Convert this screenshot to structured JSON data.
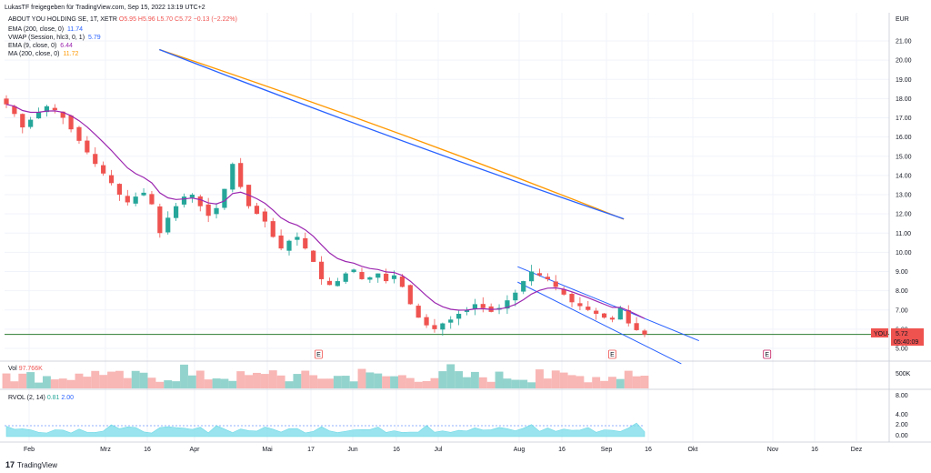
{
  "header": {
    "publisher": "LukasTF freigegeben für TradingView.com, Sep 15, 2022 13:19 UTC+2"
  },
  "symbol": {
    "name": "ABOUT YOU HOLDING SE, 1T, XETR",
    "open": "O5.95",
    "high": "H5.96",
    "low": "L5.70",
    "close": "C5.72",
    "change": "−0.13 (−2.22%)"
  },
  "indicators": [
    {
      "label": "EMA (200, close, 0)",
      "value": "11.74",
      "color": "#2962ff"
    },
    {
      "label": "VWAP (Session, hlc3, 0, 1)",
      "value": "5.79",
      "color": "#2962ff"
    },
    {
      "label": "EMA (9, close, 0)",
      "value": "6.44",
      "color": "#9c27b0"
    },
    {
      "label": "MA (200, close, 0)",
      "value": "11.72",
      "color": "#ff9800"
    }
  ],
  "currency": "EUR",
  "price_axis": [
    "21.00",
    "20.00",
    "19.00",
    "18.00",
    "17.00",
    "16.00",
    "15.00",
    "14.00",
    "13.00",
    "12.00",
    "11.00",
    "10.00",
    "9.00",
    "8.00",
    "7.00",
    "6.00",
    "5.00"
  ],
  "price_tags": {
    "level": "5.73",
    "last_symbol": "YOU",
    "last_price": "5.72",
    "countdown": "05:40:09"
  },
  "volume_pane": {
    "label": "Vol",
    "value": "97.766K",
    "axis": [
      "500K"
    ]
  },
  "rvol_pane": {
    "label": "RVOL (2, 14)",
    "v1": "0.81",
    "v2": "2.00",
    "axis": [
      "8.00",
      "4.00",
      "2.00",
      "0.00"
    ]
  },
  "time_axis": [
    "Feb",
    "Mrz",
    "16",
    "Apr",
    "Mai",
    "17",
    "Jun",
    "16",
    "Jul",
    "Aug",
    "16",
    "Sep",
    "16",
    "Okt",
    "Nov",
    "16",
    "Dez"
  ],
  "earnings_marker": "E",
  "footer": {
    "logo": "17",
    "brand": "TradingView"
  },
  "chart_data": {
    "type": "candlestick",
    "series": [
      {
        "name": "ABOUT YOU HOLDING SE",
        "close": [
          17.7,
          17.2,
          16.5,
          16.9,
          17.3,
          17.6,
          17.4,
          17.0,
          16.4,
          15.8,
          15.2,
          14.6,
          14.1,
          13.6,
          13.0,
          12.6,
          12.9,
          13.1,
          12.5,
          11.0,
          11.8,
          12.4,
          12.9,
          13.0,
          12.4,
          11.9,
          12.3,
          13.3,
          14.6,
          13.4,
          12.4,
          12.0,
          11.6,
          10.8,
          10.2,
          10.6,
          10.8,
          10.2,
          9.5,
          8.6,
          8.3,
          8.5,
          8.9,
          9.1,
          8.6,
          8.7,
          8.9,
          8.5,
          8.8,
          8.2,
          7.3,
          6.6,
          6.2,
          6.0,
          6.3,
          6.5,
          6.8,
          7.0,
          7.3,
          7.1,
          6.9,
          7.1,
          7.5,
          7.9,
          8.5,
          9.0,
          8.8,
          8.6,
          8.2,
          7.8,
          7.4,
          7.2,
          7.0,
          6.8,
          6.6,
          6.5,
          7.1,
          6.3,
          5.95,
          5.72
        ]
      },
      {
        "name": "EMA (200, close, 0)",
        "x": [
          0.175,
          0.7
        ],
        "values": [
          20.55,
          11.74
        ]
      },
      {
        "name": "MA (200, close, 0)",
        "x": [
          0.175,
          0.7
        ],
        "values": [
          20.55,
          11.72
        ]
      },
      {
        "name": "EMA (9, close, 0)",
        "values": "smoothed close"
      }
    ],
    "xaxis": [
      "Feb",
      "Mrz",
      "16",
      "Apr",
      "Mai",
      "17",
      "Jun",
      "16",
      "Jul",
      "Aug",
      "16",
      "Sep",
      "16",
      "Okt",
      "Nov",
      "16",
      "Dez"
    ],
    "ylim": [
      5.0,
      21.5
    ],
    "horizontal_level": 5.73,
    "channel": {
      "upper": [
        [
          0.58,
          9.25
        ],
        [
          0.785,
          5.4
        ]
      ],
      "lower": [
        [
          0.58,
          8.45
        ],
        [
          0.765,
          4.2
        ]
      ]
    },
    "earnings_dates_index": [
      0.355,
      0.687,
      0.862
    ]
  }
}
